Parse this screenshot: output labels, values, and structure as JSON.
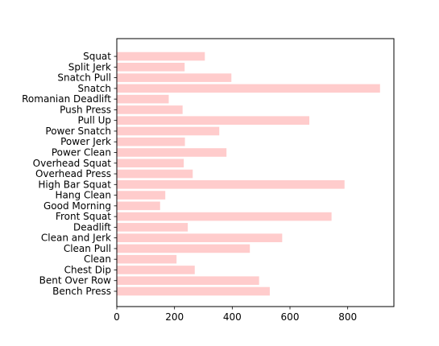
{
  "chart_data": {
    "type": "bar",
    "orientation": "horizontal",
    "categories": [
      "Bench Press",
      "Bent Over Row",
      "Chest Dip",
      "Clean",
      "Clean Pull",
      "Clean and Jerk",
      "Deadlift",
      "Front Squat",
      "Good Morning",
      "Hang Clean",
      "High Bar Squat",
      "Overhead Press",
      "Overhead Squat",
      "Power Clean",
      "Power Jerk",
      "Power Snatch",
      "Pull Up",
      "Push Press",
      "Romanian Deadlift",
      "Snatch",
      "Snatch Pull",
      "Split Jerk",
      "Squat"
    ],
    "values": [
      530,
      493,
      270,
      207,
      461,
      573,
      246,
      744,
      150,
      168,
      789,
      263,
      232,
      380,
      236,
      355,
      667,
      228,
      180,
      912,
      397,
      235,
      305
    ],
    "xlim": [
      0,
      960
    ],
    "xticks": [
      0,
      200,
      400,
      600,
      800
    ],
    "bar_color": "#ffcccc",
    "grid": false,
    "title": "",
    "xlabel": "",
    "ylabel": ""
  }
}
